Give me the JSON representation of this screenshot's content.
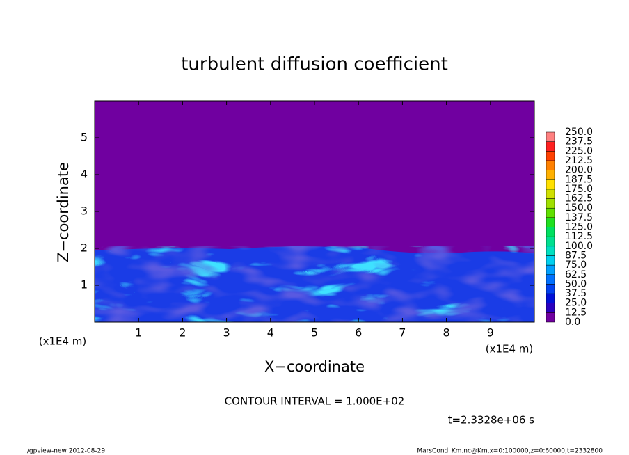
{
  "chart_data": {
    "type": "contour",
    "title": "turbulent diffusion coefficient",
    "xlabel": "X−coordinate",
    "ylabel": "Z−coordinate",
    "xunit": "(x1E4 m)",
    "yunit": "(x1E4 m)",
    "xlim": [
      0,
      10
    ],
    "ylim": [
      0,
      6
    ],
    "xticks": [
      1,
      2,
      3,
      4,
      5,
      6,
      7,
      8,
      9
    ],
    "yticks": [
      1,
      2,
      3,
      4,
      5
    ],
    "background_color": "#7000a0",
    "colorbar": {
      "levels": [
        {
          "value": 0,
          "label": "0.0"
        },
        12.5,
        {
          "value": 25,
          "label": "25.0"
        },
        37.5,
        {
          "value": 50,
          "label": "50.0"
        },
        62.5,
        {
          "value": 75,
          "label": "75.0"
        },
        87.5,
        {
          "value": 100,
          "label": "100.0"
        },
        112.5,
        {
          "value": 125,
          "label": "125.0"
        },
        137.5,
        {
          "value": 150,
          "label": "150.0"
        },
        162.5,
        {
          "value": 175,
          "label": "175.0"
        },
        187.5,
        {
          "value": 200,
          "label": "200.0"
        },
        212.5,
        {
          "value": 225,
          "label": "225.0"
        },
        237.5,
        {
          "value": 250,
          "label": "250.0"
        }
      ],
      "colors": [
        "#7000a0",
        "#2a00c0",
        "#0010d8",
        "#0040f0",
        "#0070ff",
        "#00a0ff",
        "#00d0f0",
        "#00e0c0",
        "#00e090",
        "#00e060",
        "#20e020",
        "#60e000",
        "#a0e000",
        "#d0e000",
        "#ffe000",
        "#ffb000",
        "#ff8000",
        "#ff4000",
        "#ff2020",
        "#ff8080"
      ]
    },
    "contour_interval": "CONTOUR INTERVAL = 1.000E+02",
    "time_label": "t=2.3328e+06 s",
    "footer_left": "./gpview-new  2012-08-29",
    "footer_right": "MarsCond_Km.nc@Km,x=0:100000,z=0:60000,t=2332800"
  }
}
